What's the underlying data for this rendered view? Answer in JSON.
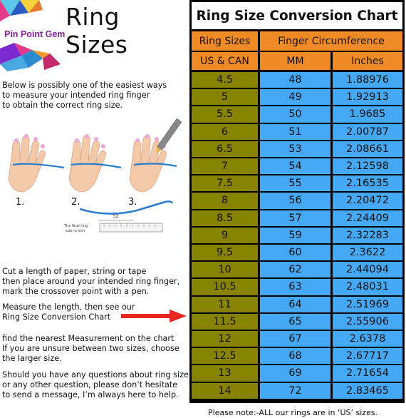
{
  "brand": "Pin Point Gem",
  "title": "Ring Sizes",
  "intro": [
    "Below is possibly one of the easiest ways",
    "to measure your intended ring finger",
    "to obtain the correct ring size."
  ],
  "steps": [
    "1.",
    "2.",
    "3."
  ],
  "ruler_value": "52",
  "ruler_caption": [
    "The final ring",
    "size in mm"
  ],
  "instructions": [
    [
      "Cut a length of paper, string or tape",
      "then place around your intended ring finger,",
      "mark the crossover point with a pen."
    ],
    [
      "Measure the length, then see our",
      "Ring Size Conversion Chart"
    ],
    [
      "find the nearest Measurement on the chart",
      "If you are unsure between two sizes, choose",
      "the larger size."
    ],
    [
      "Should you have any questions about ring size",
      "or any other question, please don’t hesitate",
      "to send a message, I’m always here to help."
    ]
  ],
  "chart": {
    "title": "Ring Size Conversion Chart",
    "header_left": "Ring Sizes",
    "header_right": "Finger Circumference",
    "sub_left": "US & CAN",
    "sub_mm": "MM",
    "sub_in": "Inches",
    "rows": [
      [
        "4.5",
        "48",
        "1.88976"
      ],
      [
        "5",
        "49",
        "1.92913"
      ],
      [
        "5.5",
        "50",
        "1.9685"
      ],
      [
        "6",
        "51",
        "2.00787"
      ],
      [
        "6.5",
        "53",
        "2.08661"
      ],
      [
        "7",
        "54",
        "2.12598"
      ],
      [
        "7.5",
        "55",
        "2.16535"
      ],
      [
        "8",
        "56",
        "2.20472"
      ],
      [
        "8.5",
        "57",
        "2.24409"
      ],
      [
        "9",
        "59",
        "2.32283"
      ],
      [
        "9.5",
        "60",
        "2.3622"
      ],
      [
        "10",
        "62",
        "2.44094"
      ],
      [
        "10.5",
        "63",
        "2.48031"
      ],
      [
        "11",
        "64",
        "2.51969"
      ],
      [
        "11.5",
        "65",
        "2.55906"
      ],
      [
        "12",
        "67",
        "2.6378"
      ],
      [
        "12.5",
        "68",
        "2.67717"
      ],
      [
        "13",
        "69",
        "2.71654"
      ],
      [
        "14",
        "72",
        "2.83465"
      ]
    ]
  },
  "footnote": "Please note:-ALL our rings are in ‘US’ sizes.",
  "colors": {
    "size_col": "#878300",
    "circ_col": "#45a8f4",
    "header": "#f08a24",
    "arrow": "#e8251f",
    "brand": "#8a1fa0"
  }
}
